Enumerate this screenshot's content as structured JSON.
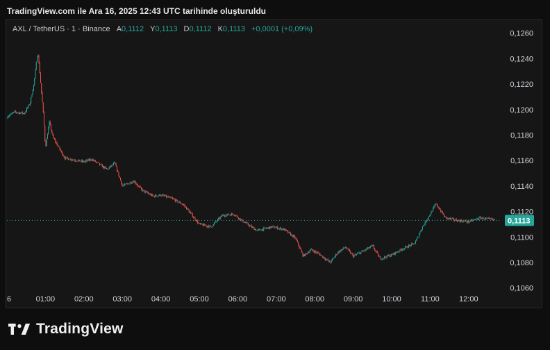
{
  "caption": "TradingView.com ile Ara 16, 2025 12:43 UTC tarihinde oluşturuldu",
  "legend": {
    "symbol": "AXL / TetherUS · 1 · Binance",
    "open_label": "A",
    "open_value": "0,1112",
    "high_label": "Y",
    "high_value": "0,1113",
    "low_label": "D",
    "low_value": "0,1112",
    "close_label": "K",
    "close_value": "0,1113",
    "change": "+0,0001 (+0,09%)"
  },
  "brand": {
    "name": "TradingView",
    "icon": "tradingview-logo-icon"
  },
  "colors": {
    "up": "#26a69a",
    "down": "#ef5350",
    "price_label_bg": "#26a69a",
    "background": "#161616"
  },
  "chart_data": {
    "type": "candlestick",
    "title": "AXL / TetherUS · 1 · Binance",
    "xlabel": "",
    "ylabel": "",
    "ylim": [
      0.1058,
      0.127
    ],
    "y_ticks": [
      "0,1260",
      "0,1240",
      "0,1220",
      "0,1200",
      "0,1180",
      "0,1160",
      "0,1140",
      "0,1120",
      "0,1100",
      "0,1080",
      "0,1060"
    ],
    "y_tick_values": [
      0.126,
      0.124,
      0.122,
      0.12,
      0.118,
      0.116,
      0.114,
      0.112,
      0.11,
      0.108,
      0.106
    ],
    "x_ticks": [
      "6",
      "01:00",
      "02:00",
      "03:00",
      "04:00",
      "05:00",
      "06:00",
      "07:00",
      "08:00",
      "09:00",
      "10:00",
      "11:00",
      "12:00"
    ],
    "x_tick_hours": [
      0,
      1,
      2,
      3,
      4,
      5,
      6,
      7,
      8,
      9,
      10,
      11,
      12
    ],
    "current_price": 0.1113,
    "current_price_label": "0,1113",
    "grid": false,
    "path_hours": [
      -0.1,
      0.2,
      0.45,
      0.6,
      0.7,
      0.8,
      0.85,
      0.95,
      1.0,
      1.1,
      1.2,
      1.5,
      2.0,
      2.2,
      2.6,
      2.8,
      3.0,
      3.3,
      3.5,
      3.8,
      4.0,
      4.3,
      4.6,
      5.0,
      5.3,
      5.6,
      5.9,
      6.1,
      6.5,
      6.9,
      7.2,
      7.5,
      7.7,
      7.9,
      8.1,
      8.4,
      8.6,
      8.8,
      9.0,
      9.2,
      9.5,
      9.7,
      10.0,
      10.3,
      10.6,
      10.8,
      11.0,
      11.15,
      11.4,
      11.7,
      12.0,
      12.3,
      12.5,
      12.85
    ],
    "path_prices": [
      0.1193,
      0.1198,
      0.1197,
      0.1205,
      0.122,
      0.1246,
      0.123,
      0.1195,
      0.117,
      0.119,
      0.1178,
      0.1162,
      0.1159,
      0.1161,
      0.1153,
      0.1158,
      0.114,
      0.1144,
      0.1137,
      0.1132,
      0.1133,
      0.113,
      0.1125,
      0.111,
      0.1108,
      0.1117,
      0.1118,
      0.1113,
      0.1105,
      0.1108,
      0.1106,
      0.1099,
      0.1085,
      0.109,
      0.1087,
      0.108,
      0.1088,
      0.1092,
      0.1085,
      0.1088,
      0.1093,
      0.1083,
      0.1086,
      0.1091,
      0.1095,
      0.1108,
      0.1118,
      0.1126,
      0.1115,
      0.1113,
      0.1112,
      0.1115,
      0.1114,
      0.1113
    ]
  }
}
